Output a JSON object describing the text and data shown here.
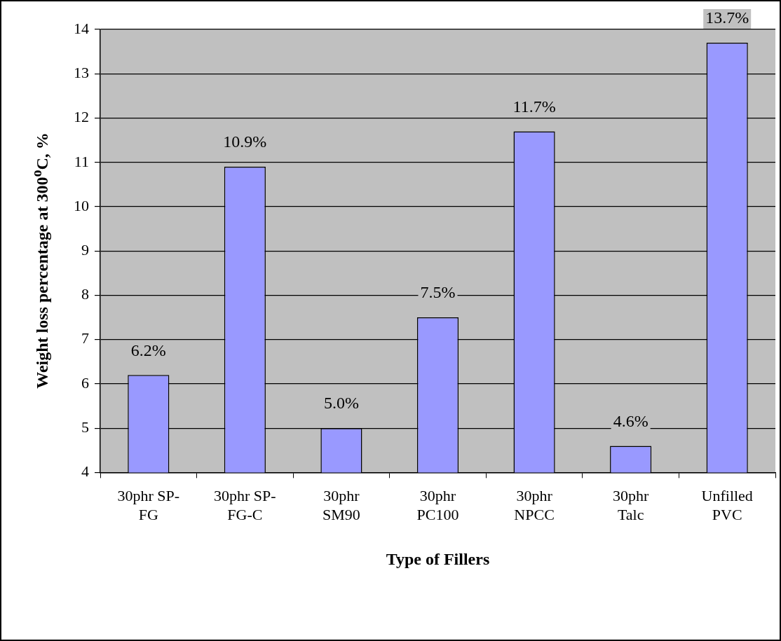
{
  "chart_data": {
    "type": "bar",
    "xlabel": "Type of Fillers",
    "ylabel": "Weight loss percentage at 300$^{o}$C, %",
    "categories": [
      "30phr SP-FG",
      "30phr SP-FG-C",
      "30phr SM90",
      "30phr PC100",
      "30phr NPCC",
      "30phr Talc",
      "Unfilled PVC"
    ],
    "values": [
      6.2,
      10.9,
      5.0,
      7.5,
      11.7,
      4.6,
      13.7
    ],
    "value_labels": [
      "6.2%",
      "10.9%",
      "5.0%",
      "7.5%",
      "11.7%",
      "4.6%",
      "13.7%"
    ],
    "color": "#9999ff",
    "ylim": [
      4,
      14
    ],
    "yticks": [
      4,
      5,
      6,
      7,
      8,
      9,
      10,
      11,
      12,
      13,
      14
    ],
    "grid": "y",
    "legend": false
  }
}
